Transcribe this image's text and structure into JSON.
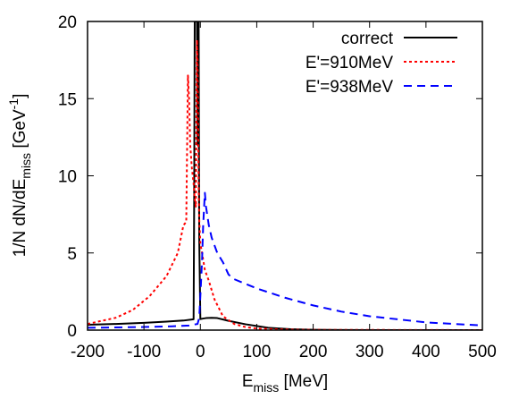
{
  "chart_data": {
    "type": "line",
    "title": "",
    "xlabel": {
      "main": "E",
      "sub": "miss",
      "rest": " [MeV]"
    },
    "ylabel": {
      "pre": "1/N dN/dE",
      "sub": "miss",
      "mid": " [GeV",
      "sup": "-1",
      "post": "]"
    },
    "xlim": [
      -200,
      500
    ],
    "ylim": [
      0,
      20
    ],
    "xticks": [
      -200,
      -100,
      0,
      100,
      200,
      300,
      400,
      500
    ],
    "yticks": [
      0,
      5,
      10,
      15,
      20
    ],
    "xtick_labels": [
      "-200",
      "-100",
      "0",
      "100",
      "200",
      "300",
      "400",
      "500"
    ],
    "ytick_labels": [
      "0",
      "5",
      "10",
      "15",
      "20"
    ],
    "legend_position": "top-right",
    "grid": false,
    "series": [
      {
        "name": "correct",
        "color": "#000000",
        "dash": "solid",
        "x": [
          -200,
          -150,
          -100,
          -60,
          -30,
          -12,
          -11,
          -10,
          -8,
          -6,
          -5,
          -4,
          -3,
          -2,
          0,
          5,
          10,
          20,
          30,
          50,
          80,
          120,
          160,
          200,
          250,
          300,
          500
        ],
        "y": [
          0.35,
          0.4,
          0.47,
          0.55,
          0.62,
          0.7,
          8,
          20,
          20,
          20,
          12,
          20,
          20,
          6,
          0.72,
          0.75,
          0.78,
          0.8,
          0.78,
          0.6,
          0.38,
          0.15,
          0.06,
          0.02,
          0.01,
          0.0,
          0.0
        ]
      },
      {
        "name": "E'=910MeV",
        "color": "#ff0000",
        "dash": "dotted",
        "x": [
          -200,
          -150,
          -120,
          -90,
          -60,
          -40,
          -30,
          -25,
          -22,
          -20,
          -18,
          -15,
          -12,
          -10,
          -8,
          -6,
          -5,
          -4,
          -3,
          -2,
          0,
          3,
          8,
          15,
          25,
          40,
          60,
          80,
          100,
          140,
          180,
          500
        ],
        "y": [
          0.4,
          0.8,
          1.3,
          2.2,
          3.5,
          5.0,
          6.8,
          7.0,
          16.5,
          15.0,
          12.0,
          10.5,
          9.5,
          8.5,
          8.0,
          18.8,
          17.5,
          13.0,
          9.5,
          7.2,
          5.6,
          5.0,
          3.9,
          3.2,
          2.0,
          0.9,
          0.4,
          0.2,
          0.1,
          0.05,
          0.02,
          0.0
        ]
      },
      {
        "name": "E'=938MeV",
        "color": "#0000ff",
        "dash": "dashed",
        "x": [
          -200,
          -100,
          -50,
          -20,
          -5,
          -2,
          0,
          3,
          5,
          8,
          10,
          15,
          20,
          30,
          40,
          50,
          60,
          80,
          100,
          150,
          200,
          250,
          300,
          350,
          400,
          450,
          500
        ],
        "y": [
          0.15,
          0.2,
          0.25,
          0.3,
          0.4,
          0.8,
          2.2,
          4.5,
          6.8,
          8.9,
          8.0,
          6.8,
          6.0,
          5.0,
          4.4,
          3.6,
          3.3,
          3.0,
          2.7,
          2.1,
          1.6,
          1.2,
          0.9,
          0.7,
          0.5,
          0.4,
          0.3
        ]
      }
    ]
  }
}
